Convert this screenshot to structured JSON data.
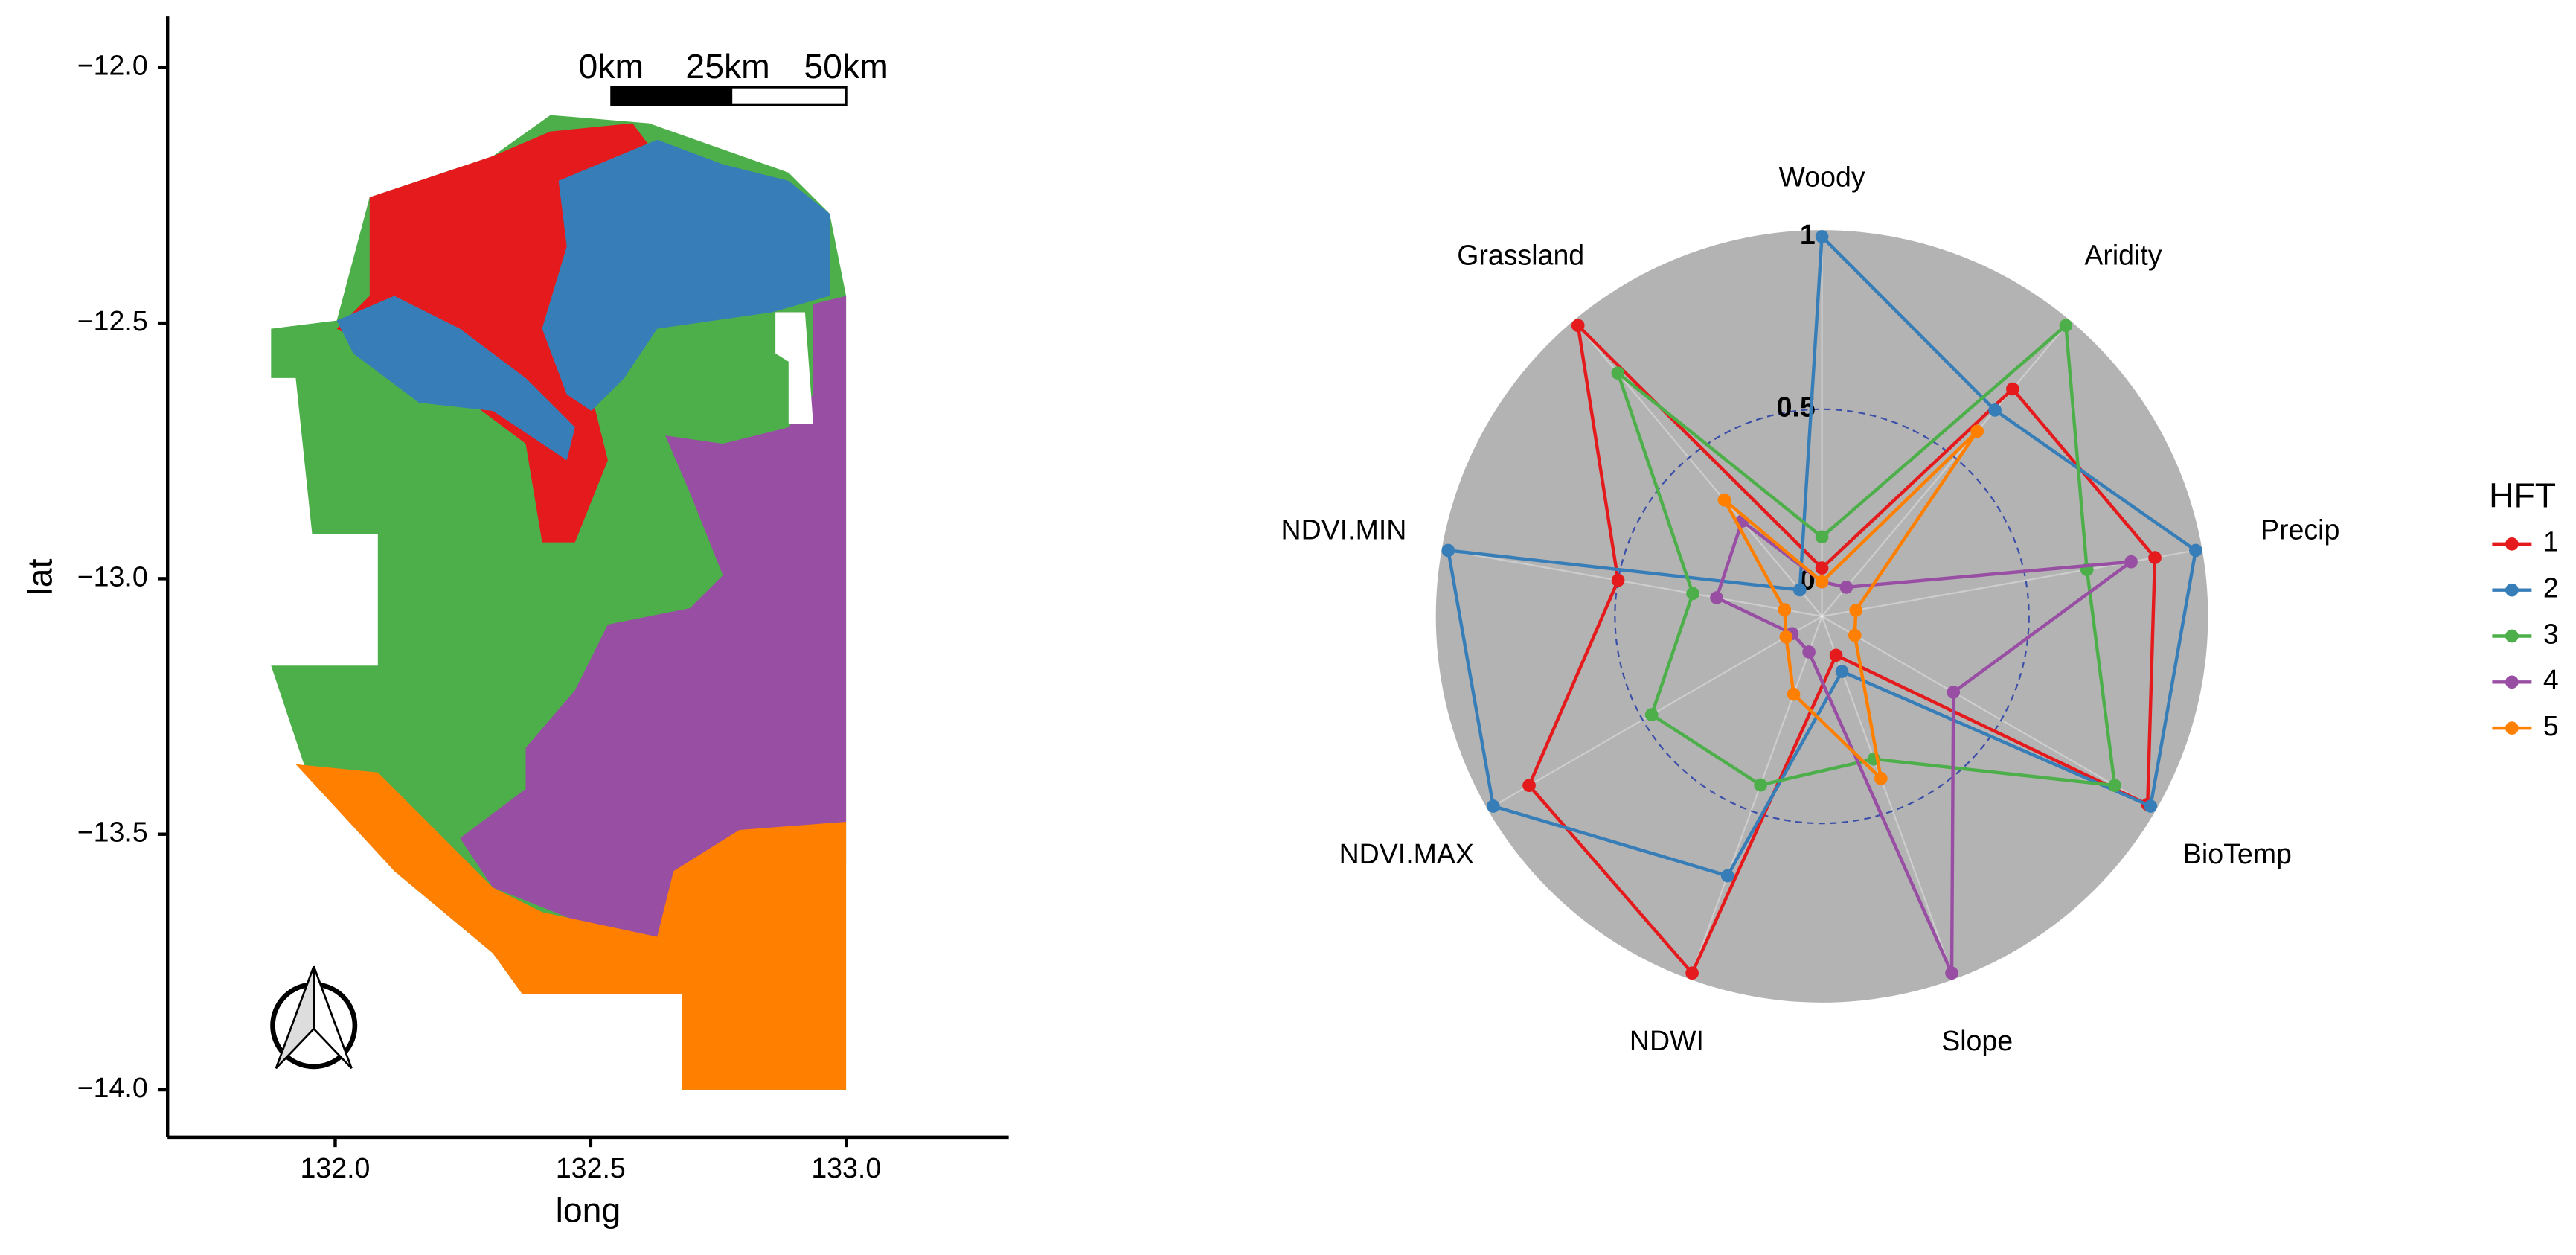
{
  "chart_data": [
    {
      "type": "map",
      "xlabel": "long",
      "ylabel": "lat",
      "xlim": [
        131.672,
        133.318
      ],
      "ylim": [
        -14.093,
        -11.9
      ],
      "xticks": [
        {
          "value": 132,
          "label": "132.0"
        },
        132.5,
        {
          "value": 133,
          "label": "133.0"
        }
      ],
      "yticks": [
        {
          "value": -14,
          "label": "−14.0"
        },
        {
          "value": -13.5,
          "label": "−13.5"
        },
        {
          "value": -13,
          "label": "−13.0"
        },
        {
          "value": -12.5,
          "label": "−12.5"
        },
        {
          "value": -12,
          "label": "−12.0"
        }
      ],
      "scale_bar_labels": [
        "0km",
        "25km",
        "50km"
      ]
    },
    {
      "type": "radar",
      "legend_title": "HFT",
      "categories": [
        "Woody",
        "Aridity",
        "Precip",
        "BioTemp",
        "Slope",
        "NDWI",
        "NDVI.MAX",
        "NDVI.MIN",
        "Grassland"
      ],
      "rlim": [
        0,
        1
      ],
      "rticks": [
        0,
        0.5,
        1
      ],
      "series": [
        {
          "name": "1",
          "color": "#e41a1c",
          "values": [
            0.04,
            0.76,
            0.88,
            0.99,
            0.02,
            1.0,
            0.88,
            0.5,
            1.0
          ]
        },
        {
          "name": "2",
          "color": "#377eb8",
          "values": [
            1.0,
            0.68,
            1.0,
            1.0,
            0.07,
            0.7,
            1.0,
            1.0,
            0.0
          ]
        },
        {
          "name": "3",
          "color": "#4daf4a",
          "values": [
            0.13,
            1.0,
            0.68,
            0.88,
            0.34,
            0.42,
            0.47,
            0.28,
            0.82
          ]
        },
        {
          "name": "4",
          "color": "#984ea3",
          "values": [
            0.0,
            0.01,
            0.81,
            0.34,
            1.0,
            0.01,
            0.0,
            0.21,
            0.26
          ]
        },
        {
          "name": "5",
          "color": "#ff7f00",
          "values": [
            0.0,
            0.6,
            0.0,
            0.01,
            0.4,
            0.14,
            0.02,
            0.01,
            0.34
          ]
        }
      ]
    }
  ]
}
